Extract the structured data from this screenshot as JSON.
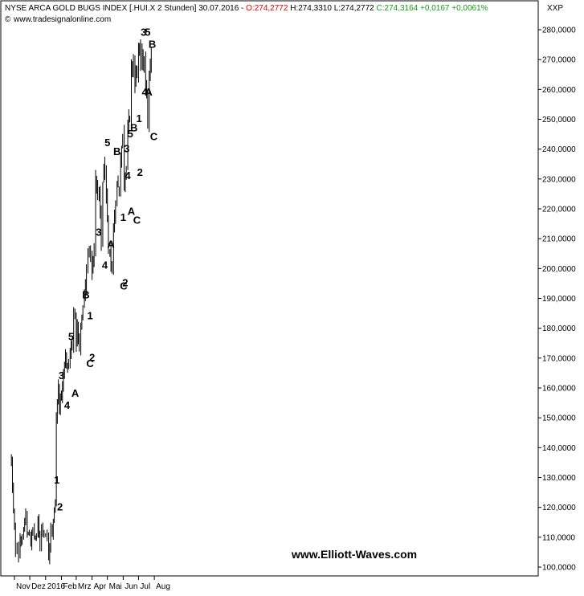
{
  "header": {
    "title": "NYSE ARCA GOLD BUGS INDEX [.HUI.X  2 Stunden] 30.07.2016 - ",
    "open": "O:274,2772",
    "high": "H:274,3310",
    "low": "L:274,2772",
    "close": "C:274,3164",
    "change": "+0,0167",
    "change_pct": "+0,0061%",
    "source": "www.tradesignalonline.com",
    "exchange_tag": "XXP"
  },
  "watermark": "www.Elliott-Waves.com",
  "colors": {
    "up": "#1a9b1a",
    "down": "#e00000",
    "ink": "#000000"
  },
  "chart_data": {
    "type": "bar",
    "style": "ohlc-line",
    "x_axis": "date",
    "x": [
      "2015-10-26",
      "2015-10-28",
      "2015-10-30",
      "2015-11-03",
      "2015-11-06",
      "2015-11-09",
      "2015-11-12",
      "2015-11-16",
      "2015-11-19",
      "2015-11-23",
      "2015-11-26",
      "2015-11-30",
      "2015-12-03",
      "2015-12-07",
      "2015-12-10",
      "2015-12-14",
      "2015-12-17",
      "2015-12-21",
      "2015-12-24",
      "2015-12-29",
      "2016-01-04",
      "2016-01-07",
      "2016-01-11",
      "2016-01-14",
      "2016-01-18",
      "2016-01-20",
      "2016-01-22",
      "2016-01-26",
      "2016-01-28",
      "2016-02-01",
      "2016-02-03",
      "2016-02-05",
      "2016-02-09",
      "2016-02-11",
      "2016-02-15",
      "2016-02-18",
      "2016-02-22",
      "2016-02-25",
      "2016-03-01",
      "2016-03-03",
      "2016-03-07",
      "2016-03-10",
      "2016-03-14",
      "2016-03-17",
      "2016-03-21",
      "2016-03-24",
      "2016-03-29",
      "2016-04-01",
      "2016-04-05",
      "2016-04-08",
      "2016-04-12",
      "2016-04-15",
      "2016-04-19",
      "2016-04-22",
      "2016-04-26",
      "2016-04-29",
      "2016-05-03",
      "2016-05-06",
      "2016-05-10",
      "2016-05-13",
      "2016-05-17",
      "2016-05-20",
      "2016-05-24",
      "2016-05-27",
      "2016-05-31",
      "2016-06-03",
      "2016-06-07",
      "2016-06-10",
      "2016-06-14",
      "2016-06-17",
      "2016-06-21",
      "2016-06-24",
      "2016-06-28",
      "2016-07-01",
      "2016-07-05",
      "2016-07-08",
      "2016-07-12",
      "2016-07-15",
      "2016-07-19",
      "2016-07-22",
      "2016-07-26",
      "2016-07-29"
    ],
    "y": [
      136,
      126,
      118,
      106,
      108,
      104,
      110,
      108,
      112,
      118,
      110,
      112,
      108,
      113,
      110,
      110,
      115,
      108,
      114,
      112,
      110,
      102,
      113,
      110,
      120,
      122,
      150,
      162,
      153,
      158,
      163,
      166,
      172,
      166,
      168,
      172,
      174,
      188,
      176,
      180,
      172,
      180,
      187,
      192,
      198,
      205,
      208,
      200,
      205,
      232,
      222,
      225,
      208,
      230,
      234,
      222,
      205,
      204,
      200,
      212,
      224,
      228,
      226,
      238,
      244,
      230,
      236,
      250,
      248,
      266,
      270,
      262,
      268,
      272,
      268,
      270,
      272,
      262,
      250,
      262,
      270,
      275
    ],
    "series": [
      {
        "name": "",
        "values": [
          136,
          126,
          118,
          106,
          108,
          104,
          110,
          108,
          112,
          118,
          110,
          112,
          108,
          113,
          110,
          110,
          115,
          108,
          114,
          112,
          110,
          102,
          113,
          110,
          120,
          122,
          150,
          162,
          153,
          158,
          163,
          166,
          172,
          166,
          168,
          172,
          174,
          188,
          176,
          180,
          172,
          180,
          187,
          192,
          198,
          205,
          208,
          200,
          205,
          232,
          222,
          225,
          208,
          230,
          234,
          222,
          205,
          204,
          200,
          212,
          224,
          228,
          226,
          238,
          244,
          230,
          236,
          250,
          248,
          266,
          270,
          262,
          268,
          272,
          268,
          270,
          272,
          262,
          250,
          262,
          270,
          275
        ]
      }
    ],
    "ylim": [
      97,
      284
    ],
    "yticks": [
      100,
      110,
      120,
      130,
      140,
      150,
      160,
      170,
      180,
      190,
      200,
      210,
      220,
      230,
      240,
      250,
      260,
      270,
      280
    ],
    "ytick_labels": [
      "100,0000",
      "110,0000",
      "120,0000",
      "130,0000",
      "140,0000",
      "150,0000",
      "160,0000",
      "170,0000",
      "180,0000",
      "190,0000",
      "200,0000",
      "210,0000",
      "220,0000",
      "230,0000",
      "240,0000",
      "250,0000",
      "260,0000",
      "270,0000",
      "280,0000"
    ],
    "xticks": [
      {
        "date": "2015-11-01",
        "label": "Nov"
      },
      {
        "date": "2015-12-01",
        "label": "Dez"
      },
      {
        "date": "2016-01-01",
        "label": "2016"
      },
      {
        "date": "2016-02-01",
        "label": "Feb"
      },
      {
        "date": "2016-03-01",
        "label": "Mrz"
      },
      {
        "date": "2016-04-01",
        "label": "Apr"
      },
      {
        "date": "2016-05-01",
        "label": "Mai"
      },
      {
        "date": "2016-06-01",
        "label": "Jun"
      },
      {
        "date": "2016-07-01",
        "label": "Jul"
      },
      {
        "date": "2016-08-01",
        "label": "Aug"
      }
    ],
    "annotations": [
      {
        "text": "1",
        "date": "2016-01-23",
        "y": 128
      },
      {
        "text": "2",
        "date": "2016-01-29",
        "y": 119
      },
      {
        "text": "3",
        "date": "2016-02-01",
        "y": 163
      },
      {
        "text": "4",
        "date": "2016-02-12",
        "y": 153
      },
      {
        "text": "5",
        "date": "2016-02-20",
        "y": 176
      },
      {
        "text": "A",
        "date": "2016-02-28",
        "y": 157
      },
      {
        "text": "B",
        "date": "2016-03-20",
        "y": 190
      },
      {
        "text": "C",
        "date": "2016-03-28",
        "y": 167
      },
      {
        "text": "1",
        "date": "2016-03-28",
        "y": 183
      },
      {
        "text": "2",
        "date": "2016-04-01",
        "y": 169
      },
      {
        "text": "3",
        "date": "2016-04-14",
        "y": 211
      },
      {
        "text": "4",
        "date": "2016-04-26",
        "y": 200
      },
      {
        "text": "5",
        "date": "2016-05-01",
        "y": 241
      },
      {
        "text": "A",
        "date": "2016-05-08",
        "y": 207
      },
      {
        "text": "B",
        "date": "2016-05-20",
        "y": 238
      },
      {
        "text": "1",
        "date": "2016-06-01",
        "y": 216
      },
      {
        "text": "C",
        "date": "2016-06-02",
        "y": 193
      },
      {
        "text": "2",
        "date": "2016-06-05",
        "y": 194
      },
      {
        "text": "3",
        "date": "2016-06-08",
        "y": 239
      },
      {
        "text": "4",
        "date": "2016-06-10",
        "y": 230
      },
      {
        "text": "5",
        "date": "2016-06-15",
        "y": 244
      },
      {
        "text": "A",
        "date": "2016-06-17",
        "y": 218
      },
      {
        "text": "B",
        "date": "2016-06-22",
        "y": 246
      },
      {
        "text": "C",
        "date": "2016-06-28",
        "y": 215
      },
      {
        "text": "1",
        "date": "2016-07-02",
        "y": 249
      },
      {
        "text": "2",
        "date": "2016-07-04",
        "y": 231
      },
      {
        "text": "3",
        "date": "2016-07-11",
        "y": 278
      },
      {
        "text": "4",
        "date": "2016-07-13",
        "y": 258
      },
      {
        "text": "5",
        "date": "2016-07-19",
        "y": 278
      },
      {
        "text": "A",
        "date": "2016-07-21",
        "y": 258
      },
      {
        "text": "B",
        "date": "2016-07-28",
        "y": 274
      },
      {
        "text": "C",
        "date": "2016-07-31",
        "y": 243
      }
    ]
  }
}
